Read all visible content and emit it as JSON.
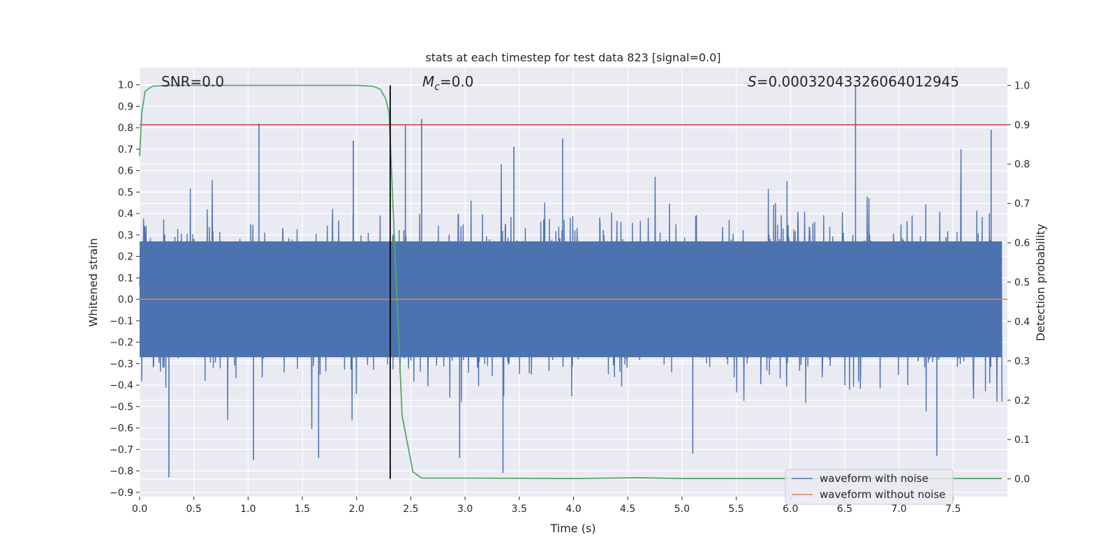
{
  "chart_data": {
    "type": "line",
    "title": "stats at each timestep for test data 823 [signal=0.0]",
    "xlabel": "Time (s)",
    "ylabel": "Whitened strain",
    "y2label": "Detection probability",
    "xlim": [
      0.0,
      8.0
    ],
    "ylim": [
      -0.92,
      1.08
    ],
    "y2lim": [
      -0.045,
      1.045
    ],
    "x_ticks": [
      "0.0",
      "0.5",
      "1.0",
      "1.5",
      "2.0",
      "2.5",
      "3.0",
      "3.5",
      "4.0",
      "4.5",
      "5.0",
      "5.5",
      "6.0",
      "6.5",
      "7.0",
      "7.5"
    ],
    "y_ticks": [
      "1.0",
      "0.9",
      "0.8",
      "0.7",
      "0.6",
      "0.5",
      "0.4",
      "0.3",
      "0.2",
      "0.1",
      "0.0",
      "−0.1",
      "−0.2",
      "−0.3",
      "−0.4",
      "−0.5",
      "−0.6",
      "−0.7",
      "−0.8",
      "−0.9"
    ],
    "y2_ticks": [
      "1.0",
      "0.9",
      "0.8",
      "0.7",
      "0.6",
      "0.5",
      "0.4",
      "0.3",
      "0.2",
      "0.1",
      "0.0"
    ],
    "grid": true,
    "legend_position": "lower-right",
    "annotations": {
      "snr": "SNR=0.0",
      "mc_symbol": "M",
      "mc_sub": "c",
      "mc_value": "=0.0",
      "s_symbol": "S",
      "s_value": "=0.00032043326064012945"
    },
    "series": [
      {
        "name": "waveform with noise",
        "color": "#4c72b0",
        "axis": "left",
        "description_stats": {
          "core_amplitude": 0.27,
          "typical_peak": 0.45,
          "noise_type": "white"
        },
        "notable_peaks": [
          {
            "x": 0.27,
            "y": -0.83
          },
          {
            "x": 1.1,
            "y": 0.82
          },
          {
            "x": 1.05,
            "y": -0.75
          },
          {
            "x": 1.65,
            "y": -0.74
          },
          {
            "x": 1.97,
            "y": 0.74
          },
          {
            "x": 2.45,
            "y": 0.81
          },
          {
            "x": 2.6,
            "y": 0.84
          },
          {
            "x": 2.95,
            "y": -0.74
          },
          {
            "x": 3.35,
            "y": -0.81
          },
          {
            "x": 3.45,
            "y": 0.71
          },
          {
            "x": 3.9,
            "y": 0.75
          },
          {
            "x": 5.1,
            "y": -0.72
          },
          {
            "x": 6.6,
            "y": 1.0
          },
          {
            "x": 7.35,
            "y": -0.73
          },
          {
            "x": 7.85,
            "y": 0.79
          }
        ]
      },
      {
        "name": "waveform without noise",
        "color": "#dd8452",
        "axis": "left",
        "x": [
          0.0,
          8.0
        ],
        "y": [
          0.0,
          0.0
        ]
      },
      {
        "name": "",
        "color": "#55a868",
        "axis": "right",
        "x": [
          0.0,
          0.02,
          0.05,
          0.12,
          0.3,
          1.0,
          2.0,
          2.15,
          2.22,
          2.27,
          2.3,
          2.35,
          2.42,
          2.52,
          2.6,
          3.0,
          4.0,
          4.6,
          5.0,
          6.0,
          7.0,
          7.95
        ],
        "y": [
          0.82,
          0.93,
          0.985,
          0.998,
          1.0,
          1.0,
          1.0,
          0.998,
          0.99,
          0.965,
          0.93,
          0.6,
          0.16,
          0.018,
          0.002,
          0.002,
          0.001,
          0.003,
          0.001,
          0.001,
          0.001,
          0.001
        ]
      }
    ],
    "reference_lines": [
      {
        "kind": "horizontal",
        "axis": "right",
        "value": 0.9,
        "color": "#c44e52"
      },
      {
        "kind": "vertical",
        "x": 2.31,
        "color": "#000000",
        "y_range_right": [
          0.0,
          1.0
        ]
      }
    ]
  }
}
